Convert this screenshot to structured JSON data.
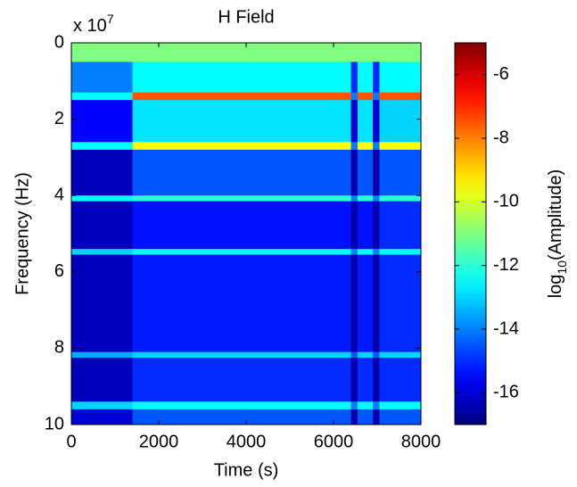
{
  "chart_data": {
    "type": "heatmap",
    "title": "H Field",
    "x_label": "Time (s)",
    "y_label": "Frequency (Hz)",
    "y_multiplier": {
      "base": "x 10",
      "exponent": "7"
    },
    "colorbar_label": {
      "base": "log",
      "sub": "10",
      "rest": "(Amplitude)"
    },
    "colormap": "jet",
    "x_edges": [
      0,
      1400,
      6400,
      6550,
      6900,
      7050,
      8000
    ],
    "y_edges": [
      0,
      0.5,
      1.3,
      1.5,
      2.6,
      2.8,
      4.0,
      4.15,
      5.4,
      5.55,
      8.1,
      8.25,
      9.4,
      9.6,
      10
    ],
    "z": [
      [
        -11,
        -11,
        -11,
        -11,
        -11,
        -11
      ],
      [
        -14,
        -12.5,
        -15,
        -12.5,
        -15,
        -12.5
      ],
      [
        -12.5,
        -7.5,
        -14,
        -7.5,
        -14,
        -7.5
      ],
      [
        -15.5,
        -12.8,
        -16,
        -12.8,
        -16,
        -13
      ],
      [
        -12.5,
        -9.5,
        -14,
        -9.5,
        -14,
        -9.5
      ],
      [
        -16.3,
        -14.5,
        -16.5,
        -14.5,
        -16.5,
        -14.5
      ],
      [
        -12.5,
        -12,
        -14,
        -12,
        -14,
        -12
      ],
      [
        -16.3,
        -15.3,
        -16.5,
        -15.3,
        -16.5,
        -15
      ],
      [
        -13,
        -12.5,
        -14,
        -12.5,
        -14,
        -12.5
      ],
      [
        -16.3,
        -15.2,
        -16.5,
        -15.2,
        -16.5,
        -15
      ],
      [
        -13.5,
        -13,
        -14.5,
        -13,
        -14.5,
        -13
      ],
      [
        -16.3,
        -15,
        -16.5,
        -15,
        -16.5,
        -15
      ],
      [
        -13,
        -12.5,
        -14,
        -12.5,
        -14,
        -12.5
      ],
      [
        -16,
        -14.5,
        -16.5,
        -14.5,
        -16.5,
        -14.5
      ]
    ],
    "xlim": [
      0,
      8000
    ],
    "xticks": [
      0,
      2000,
      4000,
      6000,
      8000
    ],
    "ylim": [
      0,
      10
    ],
    "yticks": [
      0,
      2,
      4,
      6,
      8,
      10
    ],
    "y_reversed": true,
    "clim": [
      -17,
      -5
    ],
    "cticks": [
      -6,
      -8,
      -10,
      -12,
      -14,
      -16
    ]
  }
}
